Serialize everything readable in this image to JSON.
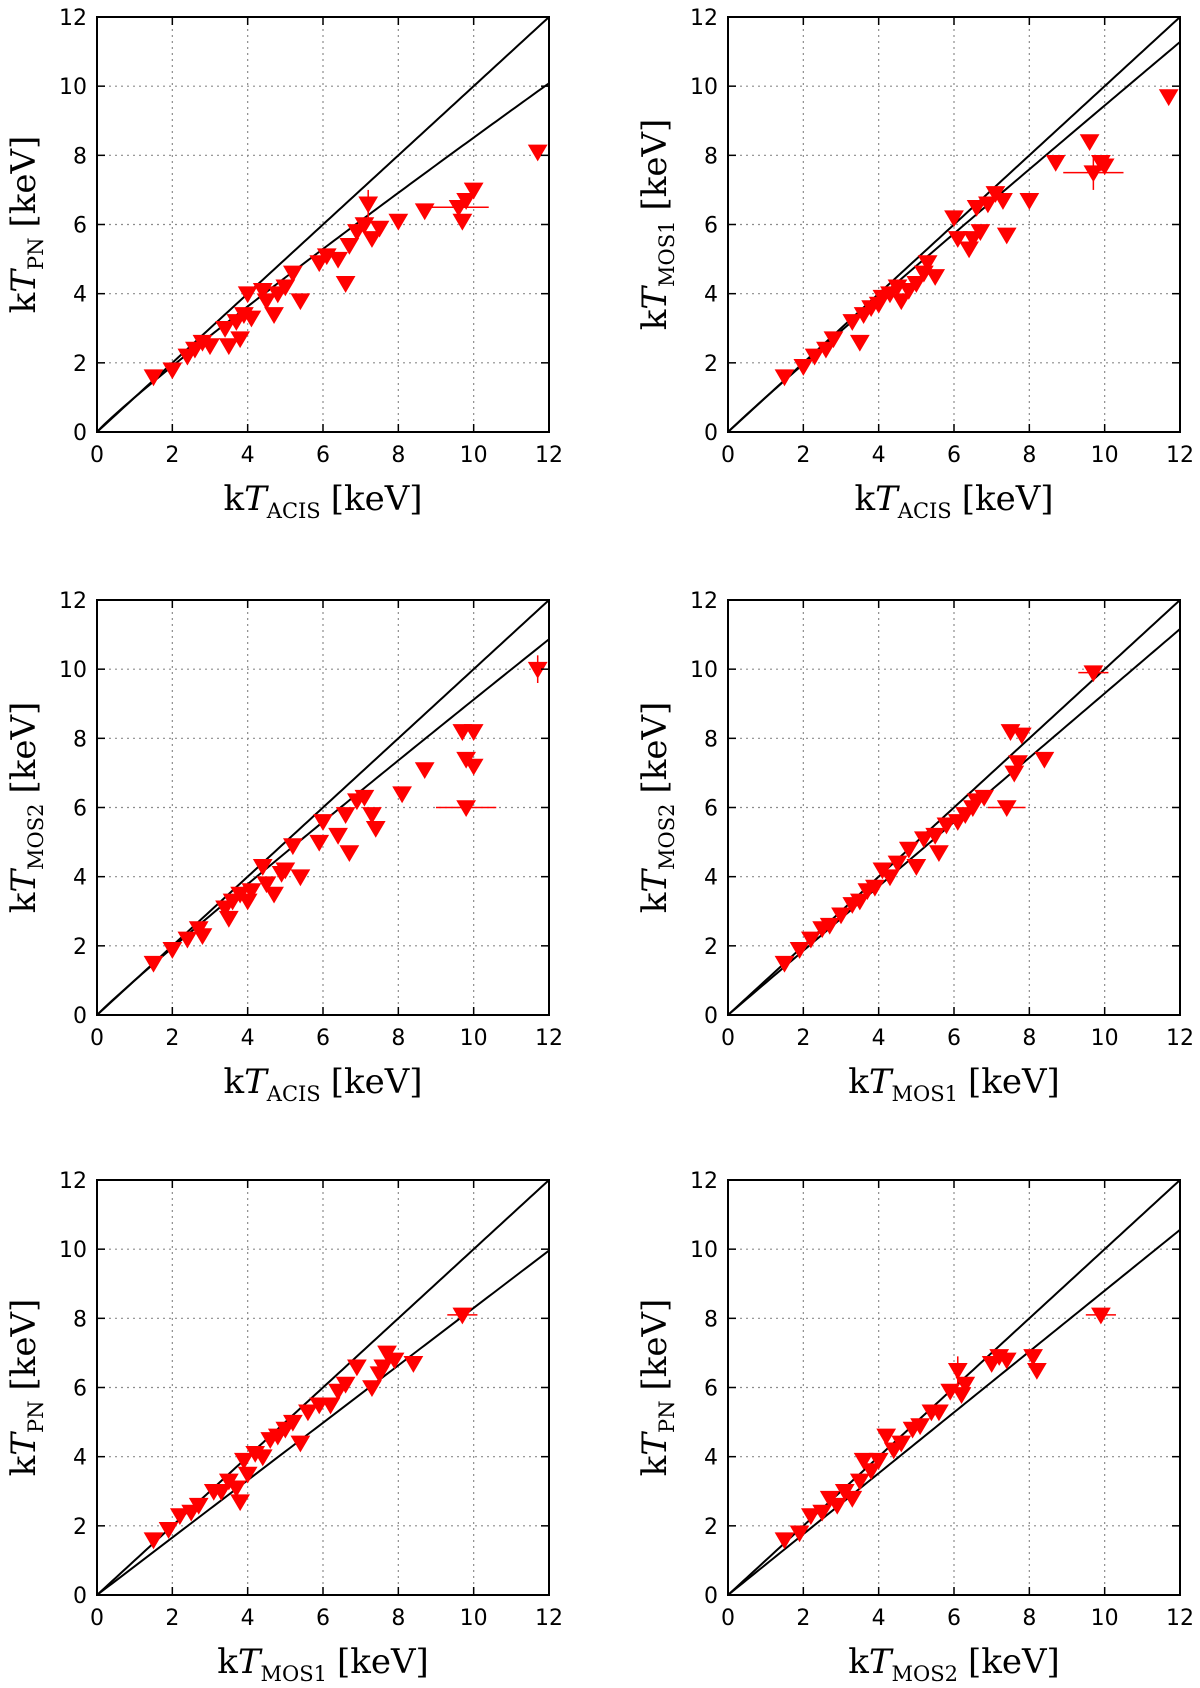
{
  "colors": {
    "marker": "#ff0000",
    "line": "#000000",
    "grid": "#8c8c8c",
    "frame": "#000000"
  },
  "chart_data": [
    {
      "type": "scatter",
      "xlabel": {
        "prefix": "k",
        "var": "T",
        "sub": "ACIS",
        "unit": "[keV]"
      },
      "ylabel": {
        "prefix": "k",
        "var": "T",
        "sub": "PN",
        "unit": "[keV]"
      },
      "xlim": [
        0,
        12
      ],
      "ylim": [
        0,
        12
      ],
      "xticks": [
        "0",
        "2",
        "4",
        "6",
        "8",
        "10",
        "12"
      ],
      "yticks": [
        "0",
        "2",
        "4",
        "6",
        "8",
        "10",
        "12"
      ],
      "grid": true,
      "lines": [
        {
          "name": "equality",
          "exponent": 1.0
        },
        {
          "name": "fit",
          "exponent": 0.93
        }
      ],
      "points": [
        [
          1.5,
          1.6
        ],
        [
          2.0,
          1.8
        ],
        [
          2.4,
          2.2
        ],
        [
          2.6,
          2.4
        ],
        [
          2.8,
          2.6
        ],
        [
          3.0,
          2.5
        ],
        [
          3.4,
          3.0
        ],
        [
          3.5,
          2.5
        ],
        [
          3.7,
          3.2
        ],
        [
          3.8,
          2.7
        ],
        [
          3.9,
          3.4
        ],
        [
          4.0,
          4.0
        ],
        [
          4.1,
          3.3
        ],
        [
          4.4,
          4.1
        ],
        [
          4.5,
          3.8
        ],
        [
          4.7,
          3.4
        ],
        [
          4.8,
          4.0
        ],
        [
          5.0,
          4.2
        ],
        [
          5.2,
          4.6
        ],
        [
          5.4,
          3.8
        ],
        [
          5.9,
          4.9
        ],
        [
          6.1,
          5.1
        ],
        [
          6.4,
          5.0
        ],
        [
          6.6,
          4.3
        ],
        [
          6.7,
          5.4
        ],
        [
          6.9,
          5.8
        ],
        [
          7.1,
          6.0
        ],
        [
          7.2,
          6.6
        ],
        [
          7.3,
          5.6
        ],
        [
          7.5,
          5.9
        ],
        [
          8.0,
          6.1
        ],
        [
          8.7,
          6.4
        ],
        [
          9.6,
          6.5
        ],
        [
          9.7,
          6.1
        ],
        [
          9.8,
          6.7
        ],
        [
          10.0,
          7.0
        ],
        [
          11.7,
          8.1
        ]
      ],
      "errors": [
        {
          "point": 32,
          "xerr": 0.8
        },
        {
          "point": 27,
          "yerr": 0.4
        }
      ]
    },
    {
      "type": "scatter",
      "xlabel": {
        "prefix": "k",
        "var": "T",
        "sub": "ACIS",
        "unit": "[keV]"
      },
      "ylabel": {
        "prefix": "k",
        "var": "T",
        "sub": "MOS1",
        "unit": "[keV]"
      },
      "xlim": [
        0,
        12
      ],
      "ylim": [
        0,
        12
      ],
      "xticks": [
        "0",
        "2",
        "4",
        "6",
        "8",
        "10",
        "12"
      ],
      "yticks": [
        "0",
        "2",
        "4",
        "6",
        "8",
        "10",
        "12"
      ],
      "grid": true,
      "lines": [
        {
          "name": "equality",
          "exponent": 1.0
        },
        {
          "name": "fit",
          "exponent": 0.975
        }
      ],
      "points": [
        [
          1.5,
          1.6
        ],
        [
          2.0,
          1.9
        ],
        [
          2.3,
          2.2
        ],
        [
          2.6,
          2.4
        ],
        [
          2.8,
          2.7
        ],
        [
          3.3,
          3.2
        ],
        [
          3.5,
          2.6
        ],
        [
          3.6,
          3.4
        ],
        [
          3.8,
          3.6
        ],
        [
          4.0,
          3.7
        ],
        [
          4.1,
          3.9
        ],
        [
          4.3,
          4.0
        ],
        [
          4.5,
          4.2
        ],
        [
          4.6,
          3.8
        ],
        [
          4.8,
          4.1
        ],
        [
          5.0,
          4.3
        ],
        [
          5.2,
          4.6
        ],
        [
          5.3,
          4.9
        ],
        [
          5.5,
          4.5
        ],
        [
          6.0,
          6.2
        ],
        [
          6.1,
          5.6
        ],
        [
          6.4,
          5.3
        ],
        [
          6.5,
          5.6
        ],
        [
          6.6,
          6.5
        ],
        [
          6.7,
          5.8
        ],
        [
          6.9,
          6.6
        ],
        [
          7.1,
          6.9
        ],
        [
          7.3,
          6.7
        ],
        [
          7.4,
          5.7
        ],
        [
          8.0,
          6.7
        ],
        [
          8.7,
          7.8
        ],
        [
          9.6,
          8.4
        ],
        [
          9.7,
          7.5
        ],
        [
          9.9,
          7.8
        ],
        [
          10.0,
          7.7
        ],
        [
          11.7,
          9.7
        ]
      ],
      "errors": [
        {
          "point": 32,
          "xerr": 0.8
        },
        {
          "point": 32,
          "yerr": 0.5
        }
      ]
    },
    {
      "type": "scatter",
      "xlabel": {
        "prefix": "k",
        "var": "T",
        "sub": "ACIS",
        "unit": "[keV]"
      },
      "ylabel": {
        "prefix": "k",
        "var": "T",
        "sub": "MOS2",
        "unit": "[keV]"
      },
      "xlim": [
        0,
        12
      ],
      "ylim": [
        0,
        12
      ],
      "xticks": [
        "0",
        "2",
        "4",
        "6",
        "8",
        "10",
        "12"
      ],
      "yticks": [
        "0",
        "2",
        "4",
        "6",
        "8",
        "10",
        "12"
      ],
      "grid": true,
      "lines": [
        {
          "name": "equality",
          "exponent": 1.0
        },
        {
          "name": "fit",
          "exponent": 0.96
        }
      ],
      "points": [
        [
          1.5,
          1.5
        ],
        [
          2.0,
          1.9
        ],
        [
          2.4,
          2.2
        ],
        [
          2.7,
          2.5
        ],
        [
          2.8,
          2.3
        ],
        [
          3.4,
          3.1
        ],
        [
          3.5,
          2.8
        ],
        [
          3.6,
          3.3
        ],
        [
          3.8,
          3.5
        ],
        [
          4.0,
          3.3
        ],
        [
          4.1,
          3.6
        ],
        [
          4.4,
          4.3
        ],
        [
          4.5,
          3.8
        ],
        [
          4.7,
          3.5
        ],
        [
          4.9,
          4.1
        ],
        [
          5.0,
          4.2
        ],
        [
          5.2,
          4.9
        ],
        [
          5.4,
          4.0
        ],
        [
          5.9,
          5.0
        ],
        [
          6.0,
          5.6
        ],
        [
          6.4,
          5.2
        ],
        [
          6.6,
          5.8
        ],
        [
          6.7,
          4.7
        ],
        [
          6.9,
          6.2
        ],
        [
          7.1,
          6.3
        ],
        [
          7.3,
          5.8
        ],
        [
          7.4,
          5.4
        ],
        [
          8.1,
          6.4
        ],
        [
          8.7,
          7.1
        ],
        [
          9.7,
          8.2
        ],
        [
          9.8,
          6.0
        ],
        [
          9.8,
          7.4
        ],
        [
          10.0,
          7.2
        ],
        [
          10.0,
          8.2
        ],
        [
          11.7,
          10.0
        ]
      ],
      "errors": [
        {
          "point": 30,
          "xerr": 0.8
        },
        {
          "point": 34,
          "yerr": 0.4
        }
      ]
    },
    {
      "type": "scatter",
      "xlabel": {
        "prefix": "k",
        "var": "T",
        "sub": "MOS1",
        "unit": "[keV]"
      },
      "ylabel": {
        "prefix": "k",
        "var": "T",
        "sub": "MOS2",
        "unit": "[keV]"
      },
      "xlim": [
        0,
        12
      ],
      "ylim": [
        0,
        12
      ],
      "xticks": [
        "0",
        "2",
        "4",
        "6",
        "8",
        "10",
        "12"
      ],
      "yticks": [
        "0",
        "2",
        "4",
        "6",
        "8",
        "10",
        "12"
      ],
      "grid": true,
      "lines": [
        {
          "name": "equality",
          "exponent": 1.0
        },
        {
          "name": "fit",
          "slope": 0.93
        }
      ],
      "points": [
        [
          1.5,
          1.5
        ],
        [
          1.9,
          1.9
        ],
        [
          2.2,
          2.2
        ],
        [
          2.5,
          2.5
        ],
        [
          2.7,
          2.6
        ],
        [
          3.0,
          2.9
        ],
        [
          3.3,
          3.2
        ],
        [
          3.5,
          3.3
        ],
        [
          3.7,
          3.6
        ],
        [
          3.9,
          3.7
        ],
        [
          4.1,
          4.2
        ],
        [
          4.3,
          4.0
        ],
        [
          4.5,
          4.4
        ],
        [
          4.8,
          4.8
        ],
        [
          5.0,
          4.3
        ],
        [
          5.2,
          5.1
        ],
        [
          5.5,
          5.2
        ],
        [
          5.6,
          4.7
        ],
        [
          5.8,
          5.5
        ],
        [
          6.1,
          5.6
        ],
        [
          6.3,
          5.8
        ],
        [
          6.5,
          6.0
        ],
        [
          6.6,
          6.2
        ],
        [
          6.8,
          6.3
        ],
        [
          7.4,
          6.0
        ],
        [
          7.5,
          8.2
        ],
        [
          7.6,
          7.0
        ],
        [
          7.7,
          7.3
        ],
        [
          7.8,
          8.1
        ],
        [
          8.4,
          7.4
        ],
        [
          9.7,
          9.9
        ]
      ],
      "errors": [
        {
          "point": 30,
          "xerr": 0.4
        },
        {
          "point": 24,
          "xerr": 0.5
        }
      ]
    },
    {
      "type": "scatter",
      "xlabel": {
        "prefix": "k",
        "var": "T",
        "sub": "MOS1",
        "unit": "[keV]"
      },
      "ylabel": {
        "prefix": "k",
        "var": "T",
        "sub": "PN",
        "unit": "[keV]"
      },
      "xlim": [
        0,
        12
      ],
      "ylim": [
        0,
        12
      ],
      "xticks": [
        "0",
        "2",
        "4",
        "6",
        "8",
        "10",
        "12"
      ],
      "yticks": [
        "0",
        "2",
        "4",
        "6",
        "8",
        "10",
        "12"
      ],
      "grid": true,
      "lines": [
        {
          "name": "equality",
          "exponent": 1.0
        },
        {
          "name": "fit",
          "slope": 0.83
        }
      ],
      "points": [
        [
          1.5,
          1.6
        ],
        [
          1.9,
          1.9
        ],
        [
          2.2,
          2.3
        ],
        [
          2.5,
          2.4
        ],
        [
          2.7,
          2.6
        ],
        [
          3.1,
          3.0
        ],
        [
          3.3,
          3.0
        ],
        [
          3.5,
          3.3
        ],
        [
          3.7,
          3.1
        ],
        [
          3.8,
          2.7
        ],
        [
          3.9,
          3.9
        ],
        [
          4.0,
          3.5
        ],
        [
          4.2,
          4.1
        ],
        [
          4.4,
          4.0
        ],
        [
          4.6,
          4.5
        ],
        [
          4.8,
          4.6
        ],
        [
          5.0,
          4.8
        ],
        [
          5.2,
          5.0
        ],
        [
          5.4,
          4.4
        ],
        [
          5.6,
          5.3
        ],
        [
          5.9,
          5.5
        ],
        [
          6.2,
          5.5
        ],
        [
          6.4,
          5.9
        ],
        [
          6.6,
          6.1
        ],
        [
          6.9,
          6.6
        ],
        [
          7.3,
          6.0
        ],
        [
          7.5,
          6.4
        ],
        [
          7.6,
          6.6
        ],
        [
          7.7,
          7.0
        ],
        [
          7.9,
          6.8
        ],
        [
          8.4,
          6.7
        ],
        [
          9.7,
          8.1
        ]
      ],
      "errors": [
        {
          "point": 31,
          "xerr": 0.4
        }
      ]
    },
    {
      "type": "scatter",
      "xlabel": {
        "prefix": "k",
        "var": "T",
        "sub": "MOS2",
        "unit": "[keV]"
      },
      "ylabel": {
        "prefix": "k",
        "var": "T",
        "sub": "PN",
        "unit": "[keV]"
      },
      "xlim": [
        0,
        12
      ],
      "ylim": [
        0,
        12
      ],
      "xticks": [
        "0",
        "2",
        "4",
        "6",
        "8",
        "10",
        "12"
      ],
      "yticks": [
        "0",
        "2",
        "4",
        "6",
        "8",
        "10",
        "12"
      ],
      "grid": true,
      "lines": [
        {
          "name": "equality",
          "exponent": 1.0
        },
        {
          "name": "fit",
          "slope": 0.88
        }
      ],
      "points": [
        [
          1.5,
          1.6
        ],
        [
          1.9,
          1.8
        ],
        [
          2.2,
          2.3
        ],
        [
          2.5,
          2.4
        ],
        [
          2.7,
          2.8
        ],
        [
          2.9,
          2.6
        ],
        [
          3.1,
          3.0
        ],
        [
          3.3,
          2.8
        ],
        [
          3.5,
          3.3
        ],
        [
          3.6,
          3.9
        ],
        [
          3.8,
          3.6
        ],
        [
          4.0,
          3.9
        ],
        [
          4.2,
          4.6
        ],
        [
          4.4,
          4.2
        ],
        [
          4.6,
          4.4
        ],
        [
          4.9,
          4.8
        ],
        [
          5.1,
          4.9
        ],
        [
          5.4,
          5.3
        ],
        [
          5.6,
          5.3
        ],
        [
          5.9,
          5.9
        ],
        [
          6.1,
          6.5
        ],
        [
          6.2,
          5.8
        ],
        [
          6.3,
          6.1
        ],
        [
          7.0,
          6.7
        ],
        [
          7.2,
          6.9
        ],
        [
          7.4,
          6.8
        ],
        [
          8.1,
          6.9
        ],
        [
          8.2,
          6.5
        ],
        [
          9.9,
          8.1
        ]
      ],
      "errors": [
        {
          "point": 28,
          "xerr": 0.4
        },
        {
          "point": 20,
          "yerr": 0.4
        }
      ]
    }
  ]
}
